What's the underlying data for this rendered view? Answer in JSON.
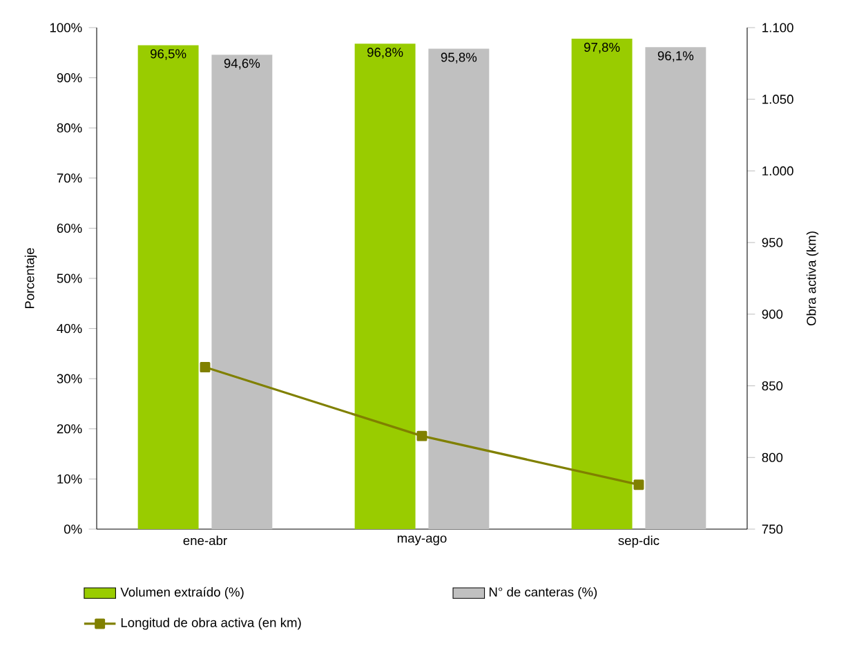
{
  "chart_data": {
    "type": "bar",
    "ylabel": "Porcentaje",
    "y2label": "Obra activa (km)",
    "categories": [
      "ene-abr",
      "may-ago",
      "sep-dic"
    ],
    "series": [
      {
        "name": "Volumen extraído (%)",
        "color": "#99cc00",
        "values": [
          96.5,
          96.8,
          97.8
        ],
        "value_labels": [
          "96,5%",
          "96,8%",
          "97,8%"
        ]
      },
      {
        "name": "N° de canteras (%)",
        "color": "#c0c0c0",
        "values": [
          94.6,
          95.8,
          96.1
        ],
        "value_labels": [
          "94,6%",
          "95,8%",
          "96,1%"
        ]
      },
      {
        "name": "Longitud de obra activa (en km)",
        "type": "line",
        "axis": "y2",
        "color": "#808000",
        "marker": "square",
        "values": [
          863,
          815,
          781
        ]
      }
    ],
    "ylim": [
      0,
      100
    ],
    "yticks": [
      {
        "value": 0,
        "label": "0%"
      },
      {
        "value": 10,
        "label": "10%"
      },
      {
        "value": 20,
        "label": "20%"
      },
      {
        "value": 30,
        "label": "30%"
      },
      {
        "value": 40,
        "label": "40%"
      },
      {
        "value": 50,
        "label": "50%"
      },
      {
        "value": 60,
        "label": "60%"
      },
      {
        "value": 70,
        "label": "70%"
      },
      {
        "value": 80,
        "label": "80%"
      },
      {
        "value": 90,
        "label": "90%"
      },
      {
        "value": 100,
        "label": "100%"
      }
    ],
    "y2lim": [
      750,
      1100
    ],
    "y2ticks": [
      750,
      800,
      850,
      900,
      950,
      {
        "value": 1000,
        "label": "1.000"
      },
      {
        "value": 1050,
        "label": "1.050"
      },
      {
        "value": 1100,
        "label": "1.100"
      }
    ],
    "legend": "bottom"
  }
}
